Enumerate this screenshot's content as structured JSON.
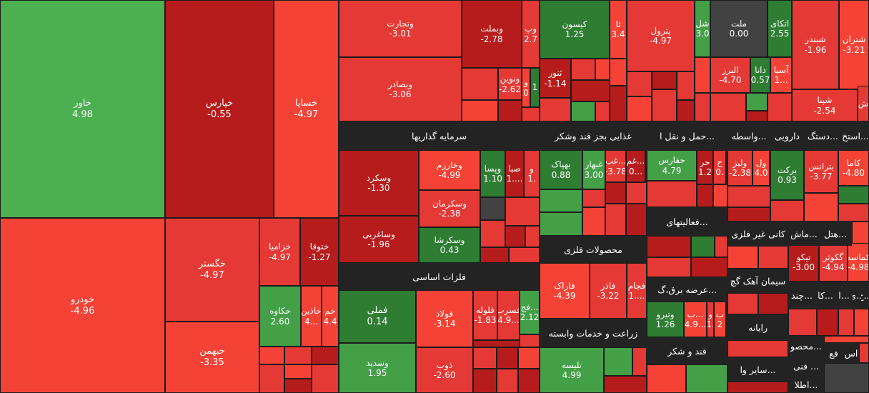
{
  "colors": {
    "positive_strong": "#2e7d32",
    "positive": "#43a047",
    "positive_light": "#4caf50",
    "negative_strong": "#b71c1c",
    "negative": "#d32f2f",
    "negative_mid": "#e53935",
    "negative_light": "#f44336",
    "neutral": "#424242",
    "header_bg": "#232323"
  },
  "sectors": [
    {
      "name": "سرمایه گذاریها"
    },
    {
      "name": "غذایی بجز قند وشکر"
    },
    {
      "name": "حمل و نقل ا..."
    },
    {
      "name": "واسطه..."
    },
    {
      "name": "دارویی"
    },
    {
      "name": "دستگ..."
    },
    {
      "name": "استخ..."
    },
    {
      "name": "فعالیتهای..."
    },
    {
      "name": "کانی غیر فلزی"
    },
    {
      "name": "ماش..."
    },
    {
      "name": "هتل..."
    },
    {
      "name": "محصولات فلزی"
    },
    {
      "name": "فلزات اساسی"
    },
    {
      "name": "سیمان آهک گچ"
    },
    {
      "name": "عرضه برق،گ..."
    },
    {
      "name": "زراعت و خدمات وابسته"
    },
    {
      "name": "چند..."
    },
    {
      "name": "کا..."
    },
    {
      "name": "ا..."
    },
    {
      "name": "ی..."
    },
    {
      "name": "خ..."
    },
    {
      "name": "رایانه"
    },
    {
      "name": "قند و شکر"
    },
    {
      "name": "محصو..."
    },
    {
      "name": "اس"
    },
    {
      "name": "فع"
    },
    {
      "name": "فنی ..."
    },
    {
      "name": "سایر وا..."
    },
    {
      "name": "اطلا..."
    }
  ],
  "stocks": [
    {
      "name": "خاور",
      "change": "4.98"
    },
    {
      "name": "خپارس",
      "change": "-0.55"
    },
    {
      "name": "خساپا",
      "change": "-4.97"
    },
    {
      "name": "خودرو",
      "change": "-4.96"
    },
    {
      "name": "خگستر",
      "change": "-4.97"
    },
    {
      "name": "خبهمن",
      "change": "-3.35"
    },
    {
      "name": "خزامیا",
      "change": "-4.97"
    },
    {
      "name": "ختوقا",
      "change": "-1.27"
    },
    {
      "name": "خکاوه",
      "change": "2.60"
    },
    {
      "name": "خاذین",
      "change": "4..."
    },
    {
      "name": "خم",
      "change": "4.4"
    },
    {
      "name": "وتجارت",
      "change": "-3.01"
    },
    {
      "name": "وبصادر",
      "change": "-3.06"
    },
    {
      "name": "وبملت",
      "change": "-2.78"
    },
    {
      "name": "وپ",
      "change": "2.7"
    },
    {
      "name": "ونوین",
      "change": "-2.62"
    },
    {
      "name": "و",
      "change": "0"
    },
    {
      "name": "",
      "change": "1"
    },
    {
      "name": "کیسون",
      "change": "1.25"
    },
    {
      "name": "ثا",
      "change": "3.4"
    },
    {
      "name": "ثنور",
      "change": "-1.14"
    },
    {
      "name": "پترول",
      "change": "-4.97"
    },
    {
      "name": "شل",
      "change": "3.0"
    },
    {
      "name": "ملت",
      "change": "0.00"
    },
    {
      "name": "اتکای",
      "change": "2.55"
    },
    {
      "name": "البرز",
      "change": "-4.70"
    },
    {
      "name": "دانا",
      "change": "0.57"
    },
    {
      "name": "آسیا",
      "change": "1..."
    },
    {
      "name": "شبندر",
      "change": "-1.96"
    },
    {
      "name": "شتران",
      "change": "-3.21"
    },
    {
      "name": "ش",
      "change": ""
    },
    {
      "name": "شپنا",
      "change": "-2.54"
    },
    {
      "name": "وسکرد",
      "change": "-1.30"
    },
    {
      "name": "وخارزم",
      "change": "-4.99"
    },
    {
      "name": "وپسا",
      "change": "1.10"
    },
    {
      "name": "صبا",
      "change": "1...."
    },
    {
      "name": "و",
      "change": "1."
    },
    {
      "name": "وسکرمان",
      "change": "-2.38"
    },
    {
      "name": "وساغربی",
      "change": "-1.96"
    },
    {
      "name": "وسکرشا",
      "change": "0.43"
    },
    {
      "name": "بهپاک",
      "change": "0.88"
    },
    {
      "name": "غبهار",
      "change": "3.00"
    },
    {
      "name": "غب...",
      "change": "-3.78"
    },
    {
      "name": "غم...",
      "change": "0..."
    },
    {
      "name": "حفارس",
      "change": "4.79"
    },
    {
      "name": "حر",
      "change": "1.2"
    },
    {
      "name": "ح",
      "change": "0."
    },
    {
      "name": "ولبز",
      "change": "-2.38"
    },
    {
      "name": "ول",
      "change": "4.0"
    },
    {
      "name": "برکت",
      "change": "0.93"
    },
    {
      "name": "بترانس",
      "change": "-3.77"
    },
    {
      "name": "کاما",
      "change": "-4.80"
    },
    {
      "name": "فاراک",
      "change": "-4.39"
    },
    {
      "name": "فاذر",
      "change": "-3.22"
    },
    {
      "name": "فجام",
      "change": "1...."
    },
    {
      "name": "فملی",
      "change": "0.14"
    },
    {
      "name": "فولاد",
      "change": "-3.14"
    },
    {
      "name": "فلوله",
      "change": "-1.83"
    },
    {
      "name": "فسرب",
      "change": "4.9..."
    },
    {
      "name": "فج...",
      "change": "2.12"
    },
    {
      "name": "وسدید",
      "change": "1.95"
    },
    {
      "name": "ذوب",
      "change": "-2.60"
    },
    {
      "name": "وتیرو",
      "change": "1.26"
    },
    {
      "name": "ب...",
      "change": "4.9..."
    },
    {
      "name": "بک...",
      "change": ""
    },
    {
      "name": "و",
      "change": "1."
    },
    {
      "name": "ب",
      "change": "2"
    },
    {
      "name": "تلیسه",
      "change": "4.99"
    },
    {
      "name": "تیکو",
      "change": "-3.00"
    },
    {
      "name": "گکوثر",
      "change": "-4.94"
    },
    {
      "name": "کماسه",
      "change": "-4.98"
    }
  ]
}
